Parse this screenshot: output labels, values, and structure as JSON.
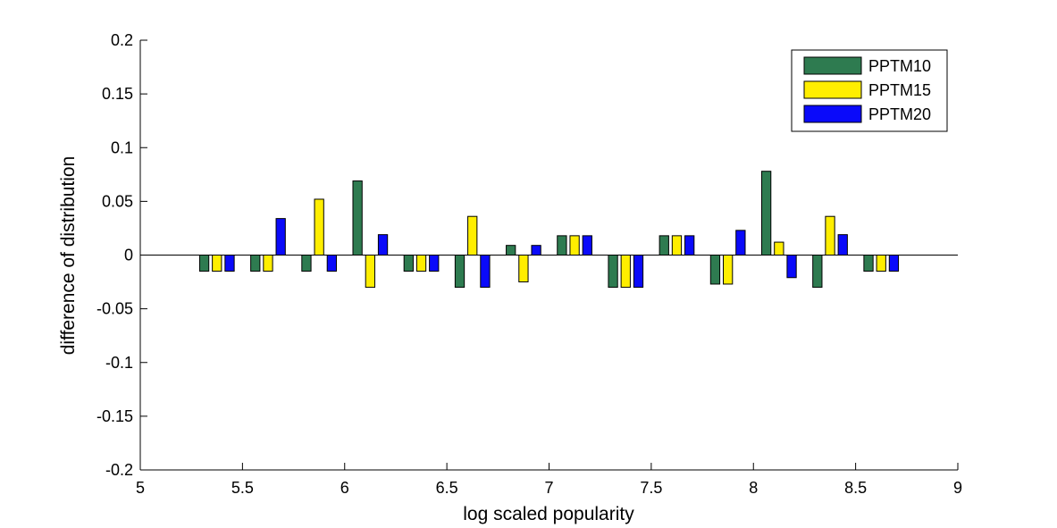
{
  "chart_data": {
    "type": "bar",
    "xlabel": "log scaled popularity",
    "ylabel": "difference of distribution",
    "xlim": [
      5,
      9
    ],
    "ylim": [
      -0.2,
      0.2
    ],
    "xticks": [
      "5",
      "5.5",
      "6",
      "6.5",
      "7",
      "7.5",
      "8",
      "8.5",
      "9"
    ],
    "yticks": [
      "0.2",
      "0.15",
      "0.1",
      "0.05",
      "0",
      "-0.05",
      "-0.1",
      "-0.15",
      "-0.2"
    ],
    "group_centers": [
      5.375,
      5.625,
      5.875,
      6.125,
      6.375,
      6.625,
      6.875,
      7.125,
      7.375,
      7.625,
      7.875,
      8.125,
      8.375,
      8.625
    ],
    "legend_position": "top-right",
    "series": [
      {
        "name": "PPTM10",
        "color": "#2e7b50",
        "values": [
          -0.015,
          -0.015,
          -0.015,
          0.069,
          -0.015,
          -0.03,
          0.009,
          0.018,
          -0.03,
          0.018,
          -0.027,
          0.078,
          -0.03,
          -0.015
        ]
      },
      {
        "name": "PPTM15",
        "color": "#ffee00",
        "values": [
          -0.015,
          -0.015,
          0.052,
          -0.03,
          -0.015,
          0.036,
          -0.025,
          0.018,
          -0.03,
          0.018,
          -0.027,
          0.012,
          0.036,
          -0.015
        ]
      },
      {
        "name": "PPTM20",
        "color": "#0a0afa",
        "values": [
          -0.015,
          0.034,
          -0.015,
          0.019,
          -0.015,
          -0.03,
          0.009,
          0.018,
          -0.03,
          0.018,
          0.023,
          -0.021,
          0.019,
          -0.015
        ]
      }
    ]
  }
}
